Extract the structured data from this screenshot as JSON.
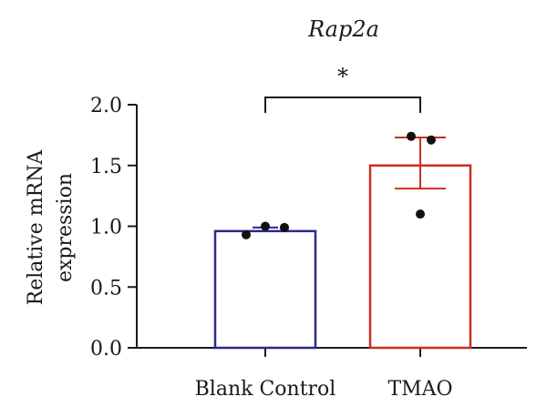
{
  "chart_data": {
    "type": "bar",
    "title": "Rap2a",
    "ylabel_lines": [
      "Relative mRNA",
      "expression"
    ],
    "categories": [
      "Blank Control",
      "TMAO"
    ],
    "values": [
      0.96,
      1.5
    ],
    "error_upper": [
      0.99,
      1.73
    ],
    "error_lower": [
      0.96,
      1.31
    ],
    "points": [
      [
        0.93,
        1.0,
        0.99
      ],
      [
        1.74,
        1.71,
        1.1
      ]
    ],
    "colors": [
      "#2b2a8c",
      "#cc2d1f"
    ],
    "ylim": [
      0,
      2.0
    ],
    "yticks": [
      0.0,
      0.5,
      1.0,
      1.5,
      2.0
    ],
    "ytick_labels": [
      "0.0",
      "0.5",
      "1.0",
      "1.5",
      "2.0"
    ],
    "significance": "*",
    "grid": false
  }
}
